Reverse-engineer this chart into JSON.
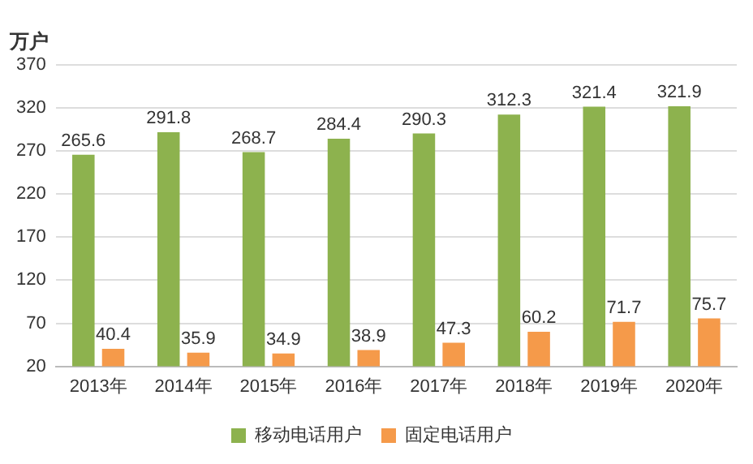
{
  "chart_data": {
    "type": "bar",
    "ylabel": "万户",
    "categories": [
      "2013年",
      "2014年",
      "2015年",
      "2016年",
      "2017年",
      "2018年",
      "2019年",
      "2020年"
    ],
    "series": [
      {
        "name": "移动电话用户",
        "color": "#8db24e",
        "values": [
          265.6,
          291.8,
          268.7,
          284.4,
          290.3,
          312.3,
          321.4,
          321.9
        ]
      },
      {
        "name": "固定电话用户",
        "color": "#f59a4a",
        "values": [
          40.4,
          35.9,
          34.9,
          38.9,
          47.3,
          60.2,
          71.7,
          75.7
        ]
      }
    ],
    "ylim": [
      20,
      370
    ],
    "yticks": [
      20,
      70,
      120,
      170,
      220,
      270,
      320,
      370
    ],
    "grid": "y",
    "legend": "bottom",
    "data_labels": true
  }
}
